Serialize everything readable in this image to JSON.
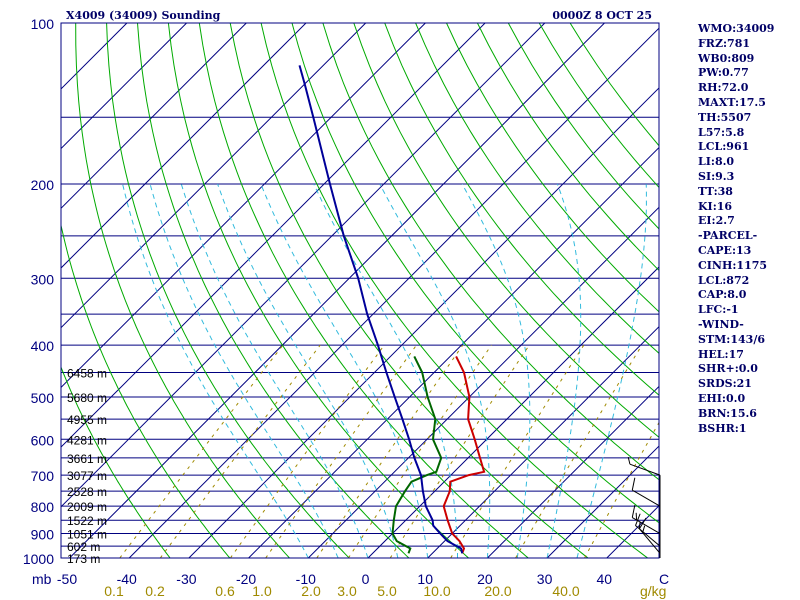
{
  "header": {
    "station_title": "X4009 (34009) Sounding",
    "time_title": "0000Z  8 OCT 25"
  },
  "axes": {
    "unit_label": "mb",
    "gkg_unit": "g/kg",
    "pressure_ticks": [
      "100",
      "200",
      "300",
      "400",
      "500",
      "600",
      "700",
      "800",
      "900",
      "1000"
    ],
    "temperature_ticks": [
      "-50",
      "-40",
      "-30",
      "-20",
      "-10",
      "0",
      "10",
      "20",
      "30",
      "40",
      "C"
    ],
    "mixing_ratio_ticks": [
      "0.1",
      "0.2",
      "0.6",
      "1.0",
      "2.0",
      "3.0",
      "5.0",
      "10.0",
      "20.0",
      "40.0"
    ]
  },
  "height_labels": [
    "6458 m",
    "5680 m",
    "4955 m",
    "4281 m",
    "3661 m",
    "3077 m",
    "2528 m",
    "2009 m",
    "1522 m",
    "1051 m",
    "602 m",
    "173 m"
  ],
  "indices": [
    "WMO:34009",
    "FRZ:781",
    "WB0:809",
    "PW:0.77",
    "RH:72.0",
    "MAXT:17.5",
    "TH:5507",
    "L57:5.8",
    "LCL:961",
    "LI:8.0",
    "SI:9.3",
    "TT:38",
    "KI:16",
    "EI:2.7",
    "-PARCEL-",
    "CAPE:13",
    "CINH:1175",
    "LCL:872",
    "CAP:8.0",
    "LFC:-1",
    "-WIND-",
    "STM:143/6",
    "HEL:17",
    "SHR+:0.0",
    "SRDS:21",
    "EHI:0.0",
    "BRN:15.6",
    "BSHR:1"
  ],
  "colors": {
    "isobar": "#000080",
    "isotherm": "#000080",
    "dry_adiabat": "#00aa00",
    "moist_adiabat": "#33bbdd",
    "mixing_ratio": "#a08a00",
    "temperature": "#cc0000",
    "dewpoint": "#006600",
    "parcel": "#000099",
    "wind": "#000000"
  },
  "chart_data": {
    "type": "line",
    "diagram": "skew-T log-P",
    "ylim_mb": [
      1000,
      100
    ],
    "xlim_c": [
      -50,
      50
    ],
    "isobars_mb": [
      1000,
      950,
      900,
      850,
      800,
      750,
      700,
      650,
      600,
      550,
      500,
      450,
      400,
      350,
      300,
      250,
      200,
      150,
      100
    ],
    "height_levels": [
      {
        "p": 450,
        "h": 6458
      },
      {
        "p": 500,
        "h": 5680
      },
      {
        "p": 550,
        "h": 4955
      },
      {
        "p": 600,
        "h": 4281
      },
      {
        "p": 650,
        "h": 3661
      },
      {
        "p": 700,
        "h": 3077
      },
      {
        "p": 750,
        "h": 2528
      },
      {
        "p": 800,
        "h": 2009
      },
      {
        "p": 850,
        "h": 1522
      },
      {
        "p": 900,
        "h": 1051
      },
      {
        "p": 950,
        "h": 602
      },
      {
        "p": 1000,
        "h": 173
      }
    ],
    "series": [
      {
        "id": "temperature",
        "points": [
          [
            980,
            15
          ],
          [
            960,
            14.5
          ],
          [
            930,
            12.5
          ],
          [
            900,
            10
          ],
          [
            850,
            7
          ],
          [
            800,
            4
          ],
          [
            750,
            2.5
          ],
          [
            720,
            1
          ],
          [
            700,
            3
          ],
          [
            690,
            5
          ],
          [
            650,
            2
          ],
          [
            600,
            -2
          ],
          [
            550,
            -6.5
          ],
          [
            500,
            -10
          ],
          [
            450,
            -15
          ],
          [
            420,
            -19
          ]
        ]
      },
      {
        "id": "dewpoint",
        "points": [
          [
            980,
            6
          ],
          [
            960,
            5.5
          ],
          [
            930,
            2
          ],
          [
            900,
            0
          ],
          [
            850,
            -2
          ],
          [
            800,
            -4
          ],
          [
            750,
            -5
          ],
          [
            720,
            -5.5
          ],
          [
            700,
            -4
          ],
          [
            690,
            -3
          ],
          [
            650,
            -4.5
          ],
          [
            600,
            -9
          ],
          [
            550,
            -12
          ],
          [
            500,
            -17
          ],
          [
            450,
            -22
          ],
          [
            420,
            -26
          ]
        ]
      },
      {
        "id": "parcel",
        "points": [
          [
            980,
            15
          ],
          [
            960,
            14
          ],
          [
            930,
            10.5
          ],
          [
            900,
            8
          ],
          [
            870,
            5.5
          ],
          [
            850,
            4.5
          ],
          [
            800,
            1
          ],
          [
            750,
            -2
          ],
          [
            700,
            -5
          ],
          [
            650,
            -9
          ],
          [
            600,
            -13
          ],
          [
            550,
            -17.5
          ],
          [
            500,
            -22.5
          ],
          [
            450,
            -28
          ],
          [
            400,
            -34
          ],
          [
            350,
            -41
          ],
          [
            300,
            -48.5
          ],
          [
            250,
            -58
          ],
          [
            200,
            -69
          ],
          [
            150,
            -83
          ],
          [
            130,
            -90
          ],
          [
            120,
            -94
          ]
        ]
      }
    ],
    "dry_adiabats_theta_k": [
      240,
      250,
      260,
      270,
      280,
      290,
      300,
      310,
      320,
      330,
      340,
      350,
      360,
      370,
      380,
      390,
      400,
      410,
      420
    ],
    "moist_adiabats_thetaw_c": [
      -10,
      -5,
      0,
      5,
      10,
      15,
      20,
      25,
      30,
      35
    ],
    "mixing_ratio_lines_gkg": [
      0.1,
      0.2,
      0.6,
      1.0,
      2.0,
      3.0,
      5.0,
      10.0,
      20.0,
      40.0
    ],
    "wind_barbs": [
      {
        "p": 700,
        "dir": 290,
        "spd": 5
      },
      {
        "p": 800,
        "dir": 300,
        "spd": 10
      },
      {
        "p": 900,
        "dir": 300,
        "spd": 15
      },
      {
        "p": 950,
        "dir": 310,
        "spd": 15
      },
      {
        "p": 980,
        "dir": 320,
        "spd": 15
      }
    ]
  }
}
